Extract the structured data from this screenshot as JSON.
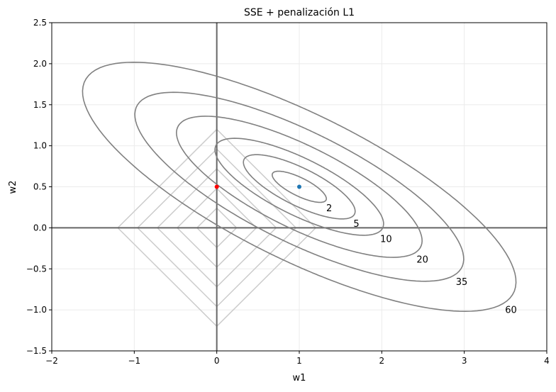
{
  "chart_data": {
    "type": "contour",
    "title": "SSE + penalización L1",
    "xlabel": "w1",
    "ylabel": "w2",
    "xlim": [
      -2,
      4
    ],
    "ylim": [
      -1.5,
      2.5
    ],
    "xticks": [
      -2,
      -1,
      0,
      1,
      2,
      3,
      4
    ],
    "xtick_labels": [
      "−2",
      "−1",
      "0",
      "1",
      "2",
      "3",
      "4"
    ],
    "yticks": [
      -1.5,
      -1.0,
      -0.5,
      0.0,
      0.5,
      1.0,
      1.5,
      2.0,
      2.5
    ],
    "ytick_labels": [
      "−1.5",
      "−1.0",
      "−0.5",
      "0.0",
      "0.5",
      "1.0",
      "1.5",
      "2.0",
      "2.5"
    ],
    "grid": true,
    "sse_contours": {
      "levels": [
        2,
        5,
        10,
        20,
        35,
        60
      ],
      "level_labels": [
        "2",
        "5",
        "10",
        "20",
        "35",
        "60"
      ],
      "center": [
        1,
        0.5
      ],
      "color": "#808080"
    },
    "l1_diamonds": {
      "radii": [
        0.24,
        0.48,
        0.72,
        0.96,
        1.2
      ],
      "color": "#cccccc"
    },
    "points": [
      {
        "w1": 1,
        "w2": 0.5,
        "color": "#1f77b4"
      },
      {
        "w1": 0,
        "w2": 0.5,
        "color": "#ff0000"
      }
    ],
    "axis_lines_color": "#666666"
  }
}
